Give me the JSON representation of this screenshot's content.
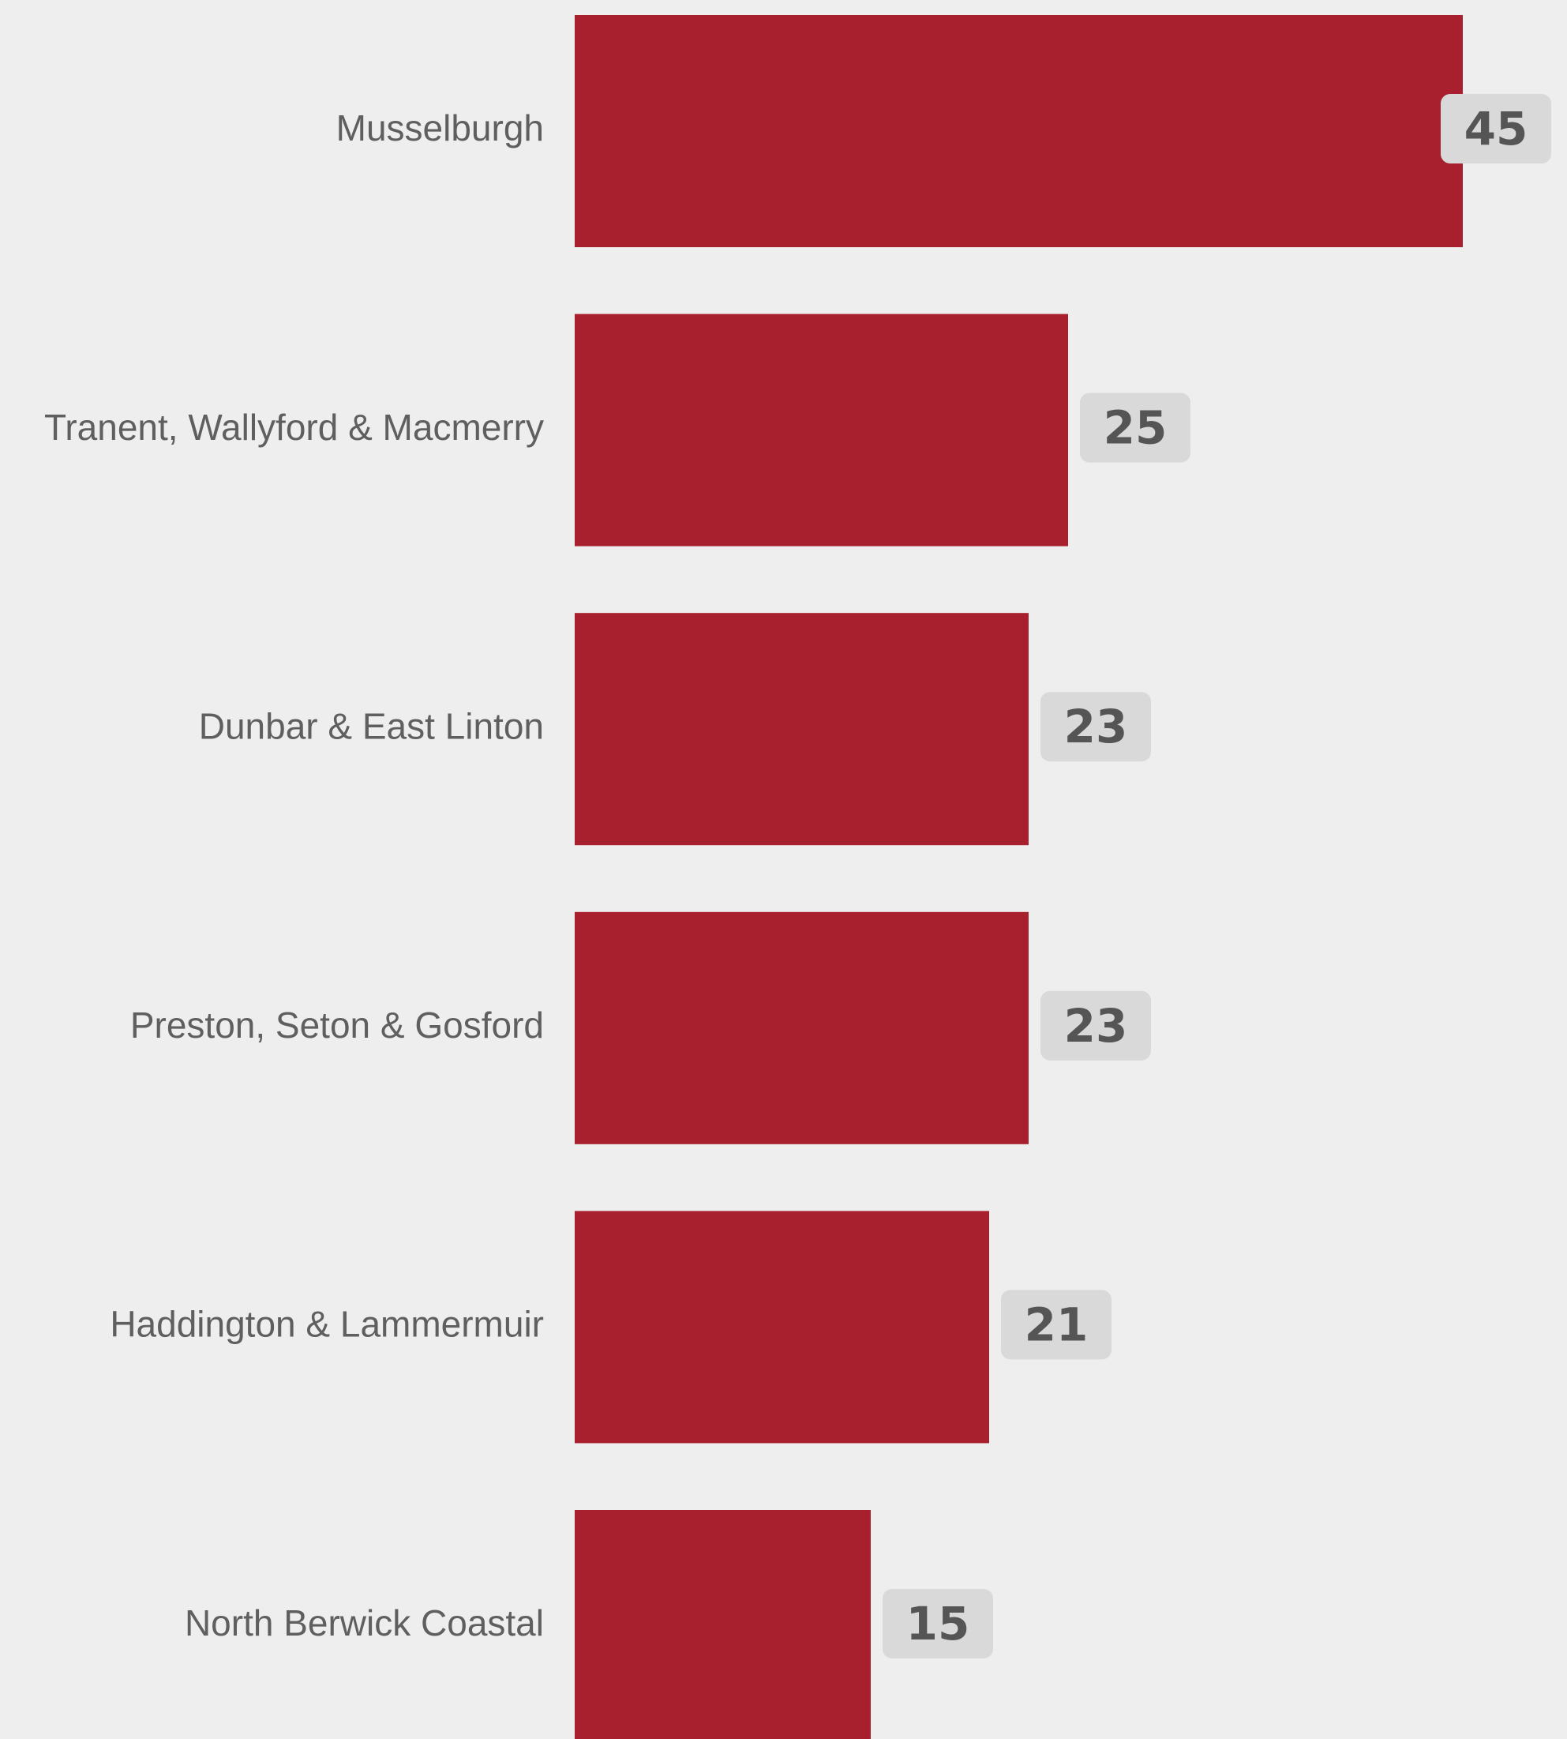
{
  "chart_data": {
    "type": "bar",
    "orientation": "horizontal",
    "categories": [
      "Musselburgh",
      "Tranent, Wallyford & Macmerry",
      "Dunbar & East Linton",
      "Preston, Seton & Gosford",
      "Haddington & Lammermuir",
      "North Berwick Coastal"
    ],
    "values": [
      45,
      25,
      23,
      23,
      21,
      15
    ],
    "data_labels": [
      "45",
      "25",
      "23",
      "23",
      "21",
      "15"
    ],
    "title": "",
    "xlabel": "",
    "ylabel": "",
    "xlim": [
      0,
      45
    ],
    "grid": false,
    "legend": "none"
  },
  "colors": {
    "background": "#eeeeee",
    "bar": "#a81f2d",
    "label_badge": "#d9d9d9",
    "value_text": "#555555",
    "category_text": "#5f5f5f"
  }
}
